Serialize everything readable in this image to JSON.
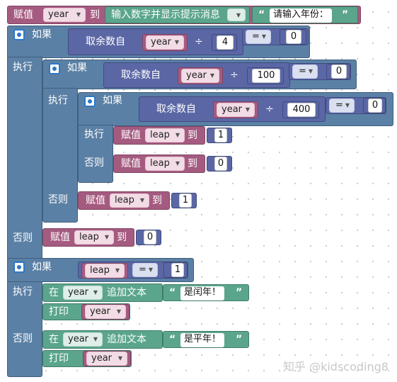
{
  "labels": {
    "set": "赋值",
    "to": "到",
    "if": "如果",
    "do": "执行",
    "else": "否则",
    "remainder_of": "取余数自",
    "divide": "÷",
    "in": "在",
    "append_text": "追加文本",
    "print": "打印"
  },
  "vars": {
    "year": "year",
    "leap": "leap"
  },
  "prompt_block": "输入数字并显示提示消息",
  "prompt_text": "请输入年份：",
  "compare_op": "=",
  "numbers": {
    "n4": "4",
    "n100": "100",
    "n400": "400",
    "n0": "0",
    "n1": "1"
  },
  "messages": {
    "leap_year": "是闰年！",
    "common_year": "是平年！"
  },
  "watermark": "知乎 @kidscoding8"
}
